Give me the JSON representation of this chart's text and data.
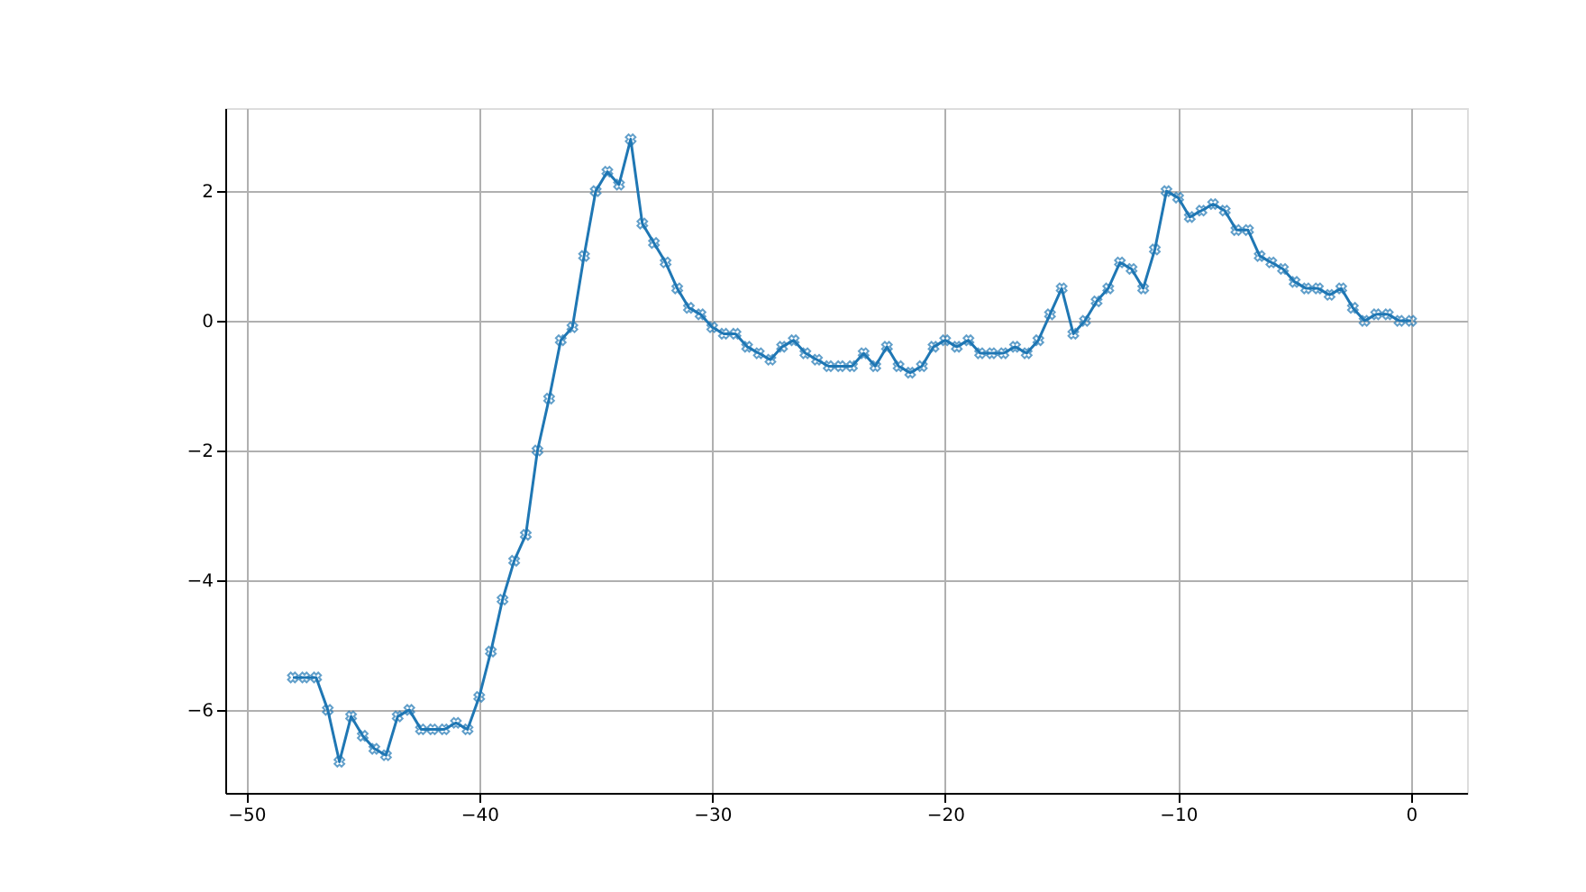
{
  "chart_data": {
    "type": "line",
    "x": [
      -48,
      -47.5,
      -47,
      -46.5,
      -46,
      -45.5,
      -45,
      -44.5,
      -44,
      -43.5,
      -43,
      -42.5,
      -42,
      -41.5,
      -41,
      -40.5,
      -40,
      -39.5,
      -39,
      -38.5,
      -38,
      -37.5,
      -37,
      -36.5,
      -36,
      -35.5,
      -35,
      -34.5,
      -34,
      -33.5,
      -33,
      -32.5,
      -32,
      -31.5,
      -31,
      -30.5,
      -30,
      -29.5,
      -29,
      -28.5,
      -28,
      -27.5,
      -27,
      -26.5,
      -26,
      -25.5,
      -25,
      -24.5,
      -24,
      -23.5,
      -23,
      -22.5,
      -22,
      -21.5,
      -21,
      -20.5,
      -20,
      -19.5,
      -19,
      -18.5,
      -18,
      -17.5,
      -17,
      -16.5,
      -16,
      -15.5,
      -15,
      -14.5,
      -14,
      -13.5,
      -13,
      -12.5,
      -12,
      -11.5,
      -11,
      -10.5,
      -10,
      -9.5,
      -9,
      -8.5,
      -8,
      -7.5,
      -7,
      -6.5,
      -6,
      -5.5,
      -5,
      -4.5,
      -4,
      -3.5,
      -3,
      -2.5,
      -2,
      -1.5,
      -1,
      -0.5,
      0
    ],
    "series": [
      {
        "color": "#1f77b4",
        "values": [
          -5.5,
          -5.5,
          -5.5,
          -6.0,
          -6.8,
          -6.1,
          -6.4,
          -6.6,
          -6.7,
          -6.1,
          -6.0,
          -6.3,
          -6.3,
          -6.3,
          -6.2,
          -6.3,
          -5.8,
          -5.1,
          -4.3,
          -3.7,
          -3.3,
          -2.0,
          -1.2,
          -0.3,
          -0.1,
          1.0,
          2.0,
          2.3,
          2.1,
          2.8,
          1.5,
          1.2,
          0.9,
          0.5,
          0.2,
          0.1,
          -0.1,
          -0.2,
          -0.2,
          -0.4,
          -0.5,
          -0.6,
          -0.4,
          -0.3,
          -0.5,
          -0.6,
          -0.7,
          -0.7,
          -0.7,
          -0.5,
          -0.7,
          -0.4,
          -0.7,
          -0.8,
          -0.7,
          -0.4,
          -0.3,
          -0.4,
          -0.3,
          -0.5,
          -0.5,
          -0.5,
          -0.4,
          -0.5,
          -0.3,
          0.1,
          0.5,
          -0.2,
          0.0,
          0.3,
          0.5,
          0.9,
          0.8,
          0.5,
          1.1,
          2.0,
          1.9,
          1.6,
          1.7,
          1.8,
          1.7,
          1.4,
          1.4,
          1.0,
          0.9,
          0.8,
          0.6,
          0.5,
          0.5,
          0.4,
          0.5,
          0.2,
          0.0,
          0.1,
          0.1,
          0.0,
          0.0
        ]
      }
    ],
    "xlim": [
      -50.9,
      2.4
    ],
    "ylim": [
      -7.28,
      3.28
    ],
    "xticks": [
      -50,
      -40,
      -30,
      -20,
      -10,
      0
    ],
    "yticks": [
      -6,
      -4,
      -2,
      0,
      2
    ],
    "grid": true,
    "marker": "cross",
    "line_style": "solid"
  }
}
